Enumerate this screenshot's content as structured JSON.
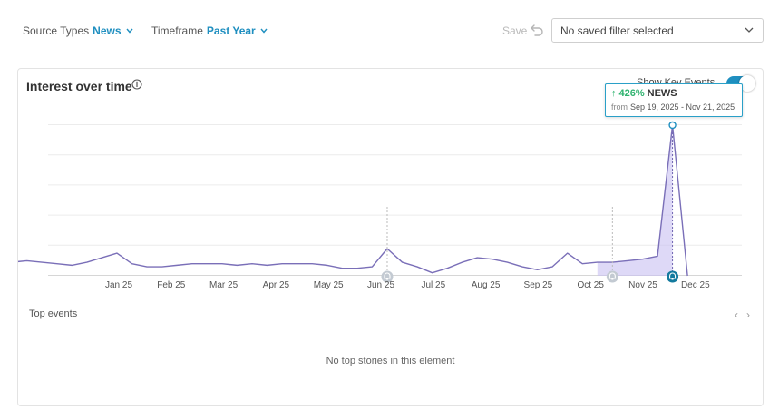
{
  "filters": {
    "source_types": {
      "label": "Source Types",
      "value": "News"
    },
    "timeframe": {
      "label": "Timeframe",
      "value": "Past Year"
    }
  },
  "actions": {
    "save_label": "Save"
  },
  "saved_filter": {
    "value": "No saved filter selected"
  },
  "card": {
    "title": "Interest over time",
    "key_events_label": "Show Key Events",
    "key_events_on": true,
    "top_events_label": "Top events",
    "empty_message": "No top stories in this element"
  },
  "tooltip": {
    "percent": "426%",
    "source": "NEWS",
    "from_label": "from",
    "range": "Sep 19, 2025 - Nov 21, 2025"
  },
  "colors": {
    "accent": "#1f8fc0",
    "line": "#7a6fb8",
    "fill": "#c8bff2",
    "positive": "#2fb36f"
  },
  "chart_data": {
    "type": "line",
    "x_ticks": [
      "Jan 25",
      "Feb 25",
      "Mar 25",
      "Apr 25",
      "May 25",
      "Jun 25",
      "Jul 25",
      "Aug 25",
      "Sep 25",
      "Oct 25",
      "Nov 25",
      "Dec 25"
    ],
    "x_start": -2.9,
    "x_end": 10.85,
    "ylim": [
      0,
      100
    ],
    "values": [
      12,
      13,
      8,
      9,
      10,
      9,
      8,
      7,
      9,
      12,
      15,
      8,
      6,
      6,
      7,
      8,
      8,
      8,
      7,
      8,
      7,
      8,
      8,
      8,
      7,
      5,
      5,
      6,
      18,
      9,
      6,
      2,
      5,
      9,
      12,
      11,
      9,
      6,
      4,
      6,
      15,
      8,
      9,
      9,
      10,
      11,
      13,
      100,
      0
    ],
    "highlight_start_index": 42,
    "peak_index": 47,
    "key_events": [
      {
        "index": 28,
        "type": "past"
      },
      {
        "index": 43,
        "type": "past"
      },
      {
        "index": 47,
        "type": "current"
      }
    ],
    "grid": true,
    "legend": "none"
  }
}
